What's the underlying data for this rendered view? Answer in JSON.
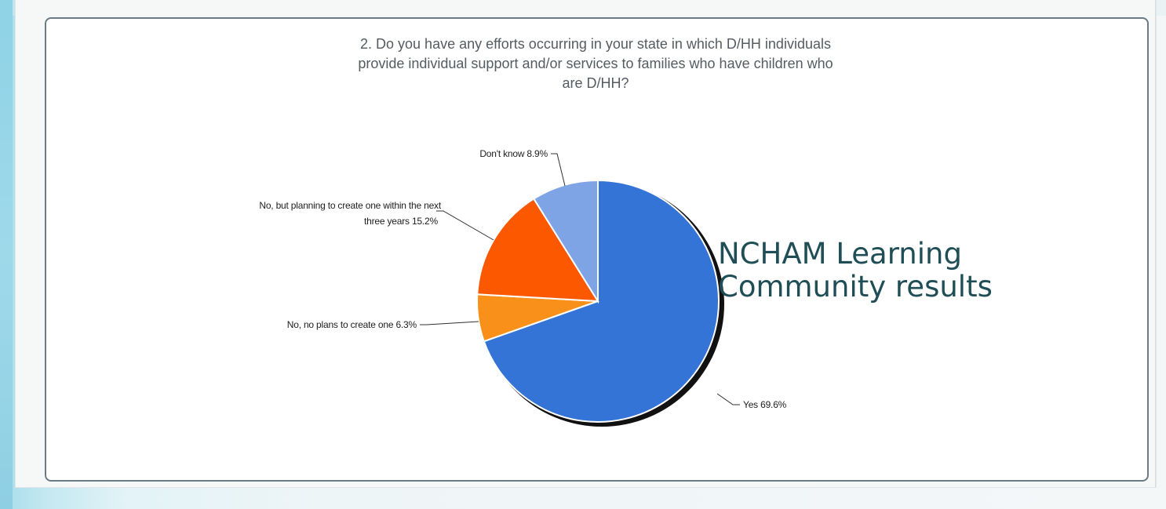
{
  "slide": {
    "overlay_title_line1": "NCHAM Learning",
    "overlay_title_line2": "Community results"
  },
  "chart_data": {
    "type": "pie",
    "title_lines": [
      "2. Do you have any efforts occurring in your state in which D/HH individuals",
      "provide individual support and/or services to families who have children who",
      "are D/HH?"
    ],
    "slices": [
      {
        "name": "Yes",
        "value": 69.6,
        "label": "Yes 69.6%",
        "color": "#3474d6"
      },
      {
        "name": "No, no plans to create one",
        "value": 6.3,
        "label": "No, no plans to create one 6.3%",
        "color": "#f8901a"
      },
      {
        "name": "No, but planning to create one within the next three years",
        "value": 15.2,
        "label_lines": [
          "No, but planning to create one within the next",
          "three years 15.2%"
        ],
        "color": "#fc5800"
      },
      {
        "name": "Don't know",
        "value": 8.9,
        "label": "Don't know 8.9%",
        "color": "#7ea4e6"
      }
    ],
    "start_angle_deg": 0,
    "direction": "clockwise"
  }
}
